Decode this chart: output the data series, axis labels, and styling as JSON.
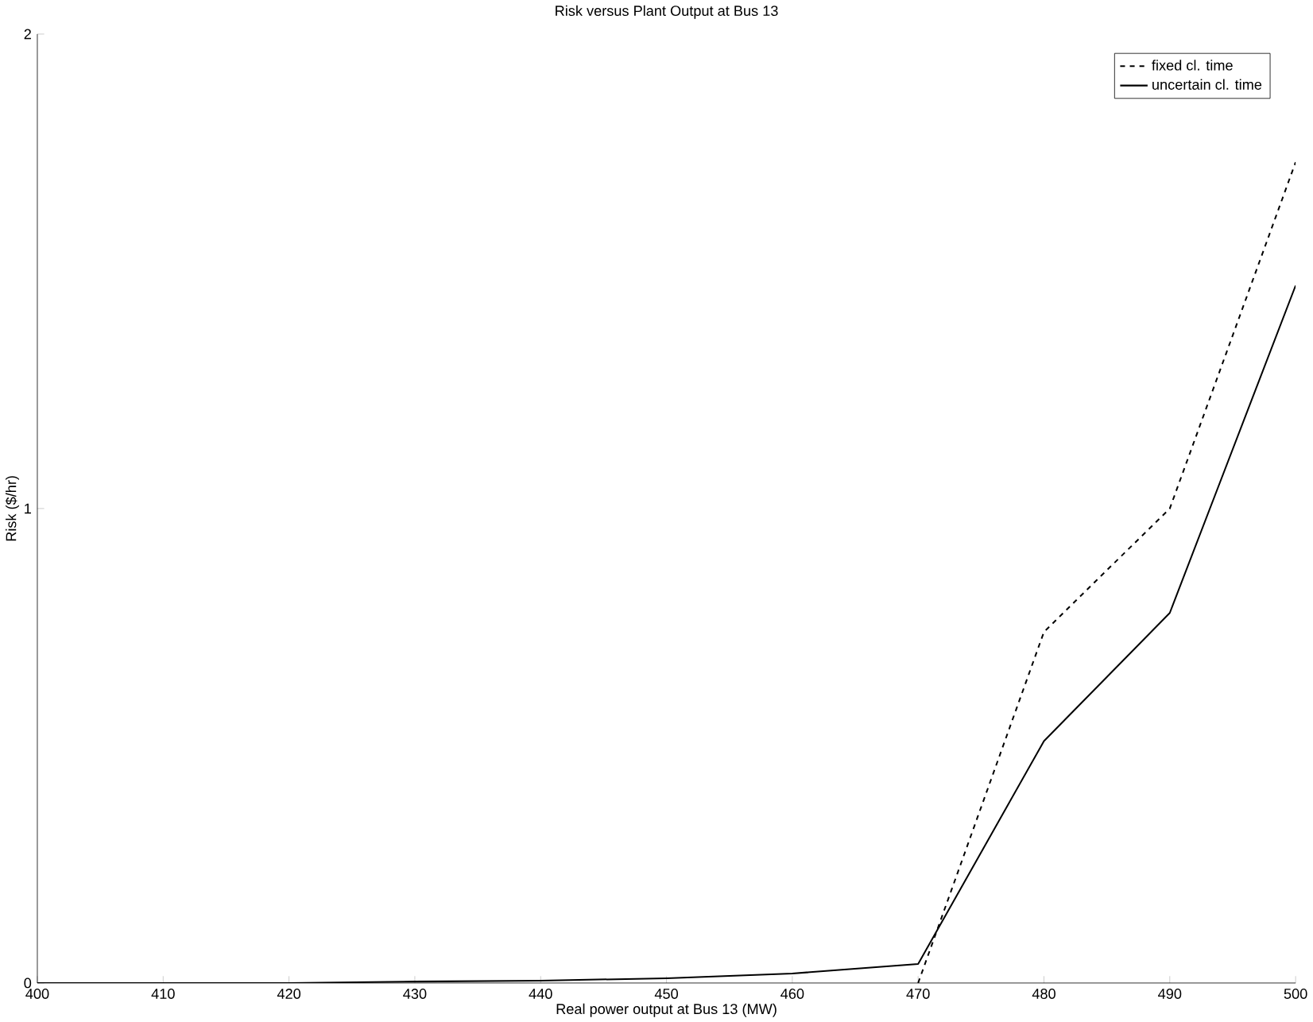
{
  "chart_data": {
    "type": "line",
    "title": "Risk versus Plant Output at Bus 13",
    "xlabel": "Real power output at Bus 13 (MW)",
    "ylabel": "Risk ($/hr)",
    "x": [
      400,
      410,
      420,
      430,
      440,
      450,
      460,
      470,
      480,
      490,
      500
    ],
    "series": [
      {
        "name": "fixed cl. time",
        "color": "#000000",
        "line_style": "dashed",
        "values": [
          null,
          null,
          null,
          null,
          null,
          null,
          null,
          0,
          0.74,
          1.0,
          1.73
        ]
      },
      {
        "name": "uncertain cl. time",
        "color": "#000000",
        "line_style": "solid",
        "values": [
          0,
          0,
          0,
          0.003,
          0.005,
          0.01,
          0.02,
          0.04,
          0.51,
          0.78,
          1.47
        ]
      }
    ],
    "xlim": [
      400,
      500
    ],
    "ylim": [
      0,
      2
    ],
    "xticks": [
      400,
      410,
      420,
      430,
      440,
      450,
      460,
      470,
      480,
      490,
      500
    ],
    "yticks": [
      0,
      1,
      2
    ],
    "legend": "top right",
    "grid": false
  }
}
